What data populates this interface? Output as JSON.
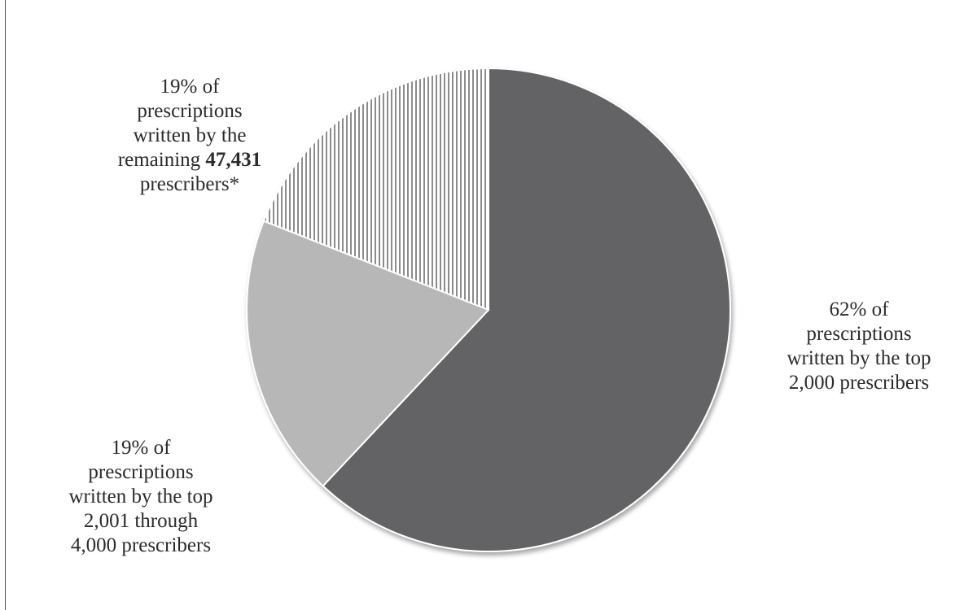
{
  "chart_data": {
    "type": "pie",
    "title": "",
    "start_angle_deg": 0,
    "direction": "clockwise",
    "colors": {
      "slice_top": "#636466",
      "slice_mid": "#b7b7b7",
      "slice_rest_stripe": "#8c8c8c",
      "slice_rest_bg": "#ffffff",
      "slice_border": "#ffffff"
    },
    "slices": [
      {
        "value": 62,
        "pattern": "solid-dark",
        "label_lines": [
          {
            "text": "62% of"
          },
          {
            "text": "prescriptions"
          },
          {
            "text": "written by the top"
          },
          {
            "text": "2,000 prescribers"
          }
        ]
      },
      {
        "value": 19,
        "pattern": "solid-light",
        "label_lines": [
          {
            "text": "19% of"
          },
          {
            "text": "prescriptions"
          },
          {
            "text": "written by the top"
          },
          {
            "text": "2,001 through"
          },
          {
            "text": "4,000 prescribers"
          }
        ]
      },
      {
        "value": 19,
        "pattern": "vertical-stripes",
        "label_lines": [
          {
            "text": "19% of"
          },
          {
            "text": "prescriptions"
          },
          {
            "text": "written by the"
          },
          {
            "pre": "remaining ",
            "bold": "47,431",
            "post": ""
          },
          {
            "text": "prescribers*"
          }
        ]
      }
    ]
  }
}
